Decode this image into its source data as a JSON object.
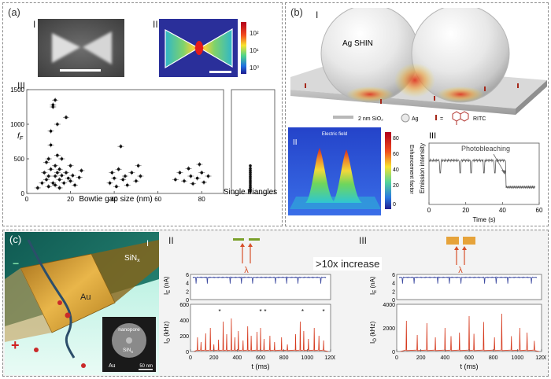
{
  "panels": {
    "a": {
      "label": "(a)",
      "sub": [
        "I",
        "II",
        "III"
      ],
      "colorbar": {
        "ticks": [
          "10²",
          "10¹",
          "10⁰"
        ]
      },
      "chart_data": {
        "type": "scatter",
        "title": "",
        "xlabel": "Bowtie gap size (nm)",
        "ylabel": "f",
        "ylabel_sub": "F",
        "xticks": [
          "0",
          "20",
          "40",
          "60",
          "80"
        ],
        "yticks": [
          "0",
          "500",
          "1000",
          "1500"
        ],
        "xlim": [
          0,
          90
        ],
        "ylim": [
          0,
          1500
        ],
        "extra_category": "Single triangles",
        "points": [
          [
            5,
            80
          ],
          [
            7,
            150
          ],
          [
            8,
            300
          ],
          [
            9,
            200
          ],
          [
            9,
            450
          ],
          [
            10,
            100
          ],
          [
            10,
            250
          ],
          [
            10,
            500
          ],
          [
            11,
            350
          ],
          [
            11,
            700
          ],
          [
            11,
            900
          ],
          [
            12,
            1250
          ],
          [
            12,
            1280
          ],
          [
            12,
            150
          ],
          [
            13,
            1350
          ],
          [
            13,
            400
          ],
          [
            13,
            250
          ],
          [
            13,
            120
          ],
          [
            14,
            1000
          ],
          [
            14,
            550
          ],
          [
            14,
            300
          ],
          [
            15,
            200
          ],
          [
            15,
            350
          ],
          [
            15,
            80
          ],
          [
            16,
            260
          ],
          [
            16,
            500
          ],
          [
            17,
            150
          ],
          [
            18,
            300
          ],
          [
            18,
            1100
          ],
          [
            19,
            220
          ],
          [
            20,
            400
          ],
          [
            20,
            180
          ],
          [
            21,
            260
          ],
          [
            22,
            120
          ],
          [
            24,
            230
          ],
          [
            25,
            330
          ],
          [
            38,
            150
          ],
          [
            39,
            300
          ],
          [
            40,
            220
          ],
          [
            41,
            100
          ],
          [
            42,
            350
          ],
          [
            43,
            680
          ],
          [
            44,
            200
          ],
          [
            45,
            250
          ],
          [
            46,
            120
          ],
          [
            48,
            300
          ],
          [
            50,
            180
          ],
          [
            51,
            400
          ],
          [
            52,
            250
          ],
          [
            68,
            200
          ],
          [
            70,
            300
          ],
          [
            72,
            180
          ],
          [
            74,
            360
          ],
          [
            75,
            250
          ],
          [
            76,
            140
          ],
          [
            78,
            220
          ],
          [
            79,
            420
          ],
          [
            80,
            300
          ],
          [
            81,
            160
          ],
          [
            83,
            250
          ]
        ],
        "single": [
          30,
          60,
          90,
          120,
          150,
          180,
          210,
          240,
          270,
          300,
          330,
          360,
          400
        ]
      }
    },
    "b": {
      "label": "(b)",
      "sub": [
        "I",
        "II",
        "III"
      ],
      "sphere_label": "Ag SHIN",
      "legend": {
        "sio2": "2 nm SiO₂",
        "ag": "Ag",
        "ritc": "RITC",
        "eq": "="
      },
      "field_title": "Electric field",
      "colorbar_label": "Enhancement factor",
      "colorbar_ticks": [
        "80",
        "60",
        "40",
        "20",
        "0"
      ],
      "trace": {
        "ylabel": "Emission intensity",
        "xlabel": "Time (s)",
        "xticks": [
          "0",
          "20",
          "40",
          "60"
        ],
        "annotation": "Photobleaching"
      }
    },
    "c": {
      "label": "(c)",
      "sub": [
        "I",
        "II",
        "III"
      ],
      "minus": "−",
      "plus": "+",
      "au": "Au",
      "sinx": "SiN",
      "sinx_sub": "x",
      "inset": {
        "nanopore": "nanopore",
        "sinx": "SiN",
        "sinx_sub": "x",
        "au": "Au",
        "scale": "50 nm"
      },
      "increase": ">10x increase",
      "lambda": "λ",
      "traceII": {
        "ie_label": "I",
        "ie_sub": "E",
        "ie_unit": "(nA)",
        "io_label": "I",
        "io_sub": "O",
        "io_unit": "(kHz)",
        "ie_ticks": [
          "6",
          "4",
          "2",
          "0"
        ],
        "io_ticks": [
          "600",
          "400",
          "200",
          "0"
        ],
        "xlabel": "t (ms)",
        "xticks": [
          "0",
          "200",
          "400",
          "600",
          "800",
          "1000",
          "1200"
        ]
      },
      "traceIII": {
        "ie_label": "I",
        "ie_sub": "E",
        "ie_unit": "(nA)",
        "io_label": "I",
        "io_sub": "O",
        "io_unit": "(kHz)",
        "ie_ticks": [
          "6",
          "4",
          "2",
          "0"
        ],
        "io_ticks": [
          "4000",
          "2000",
          "0"
        ],
        "xlabel": "t (ms)",
        "xticks": [
          "0",
          "200",
          "400",
          "600",
          "800",
          "1000",
          "1200"
        ]
      }
    }
  },
  "colors": {
    "trace_red": "#d63a1e",
    "trace_blue": "#3d4aa0",
    "gold": "#d79a2a"
  }
}
